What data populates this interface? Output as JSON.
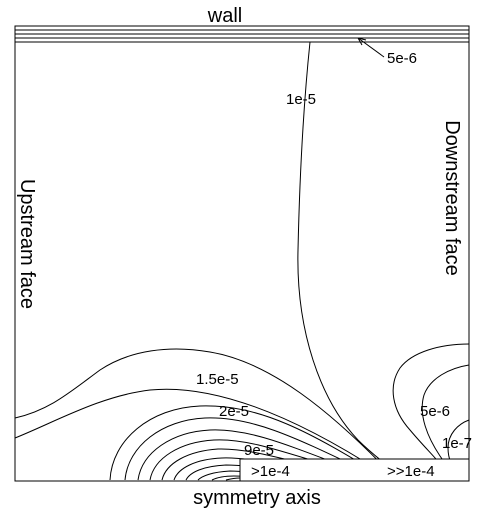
{
  "labels": {
    "top": "wall",
    "bottom": "symmetry axis",
    "left": "Upstream face",
    "right": "Downstream face"
  },
  "contour_labels": {
    "c_5e6_top": "5e-6",
    "c_1e5": "1e-5",
    "c_1_5e5": "1.5e-5",
    "c_2e5": "2e-5",
    "c_9e5": "9e-5",
    "c_5e6_right": "5e-6",
    "c_1e7": "1e-7",
    "region_gt": ">1e-4",
    "region_ggt": ">>1e-4"
  },
  "colors": {
    "line": "#000000",
    "background": "#ffffff"
  }
}
